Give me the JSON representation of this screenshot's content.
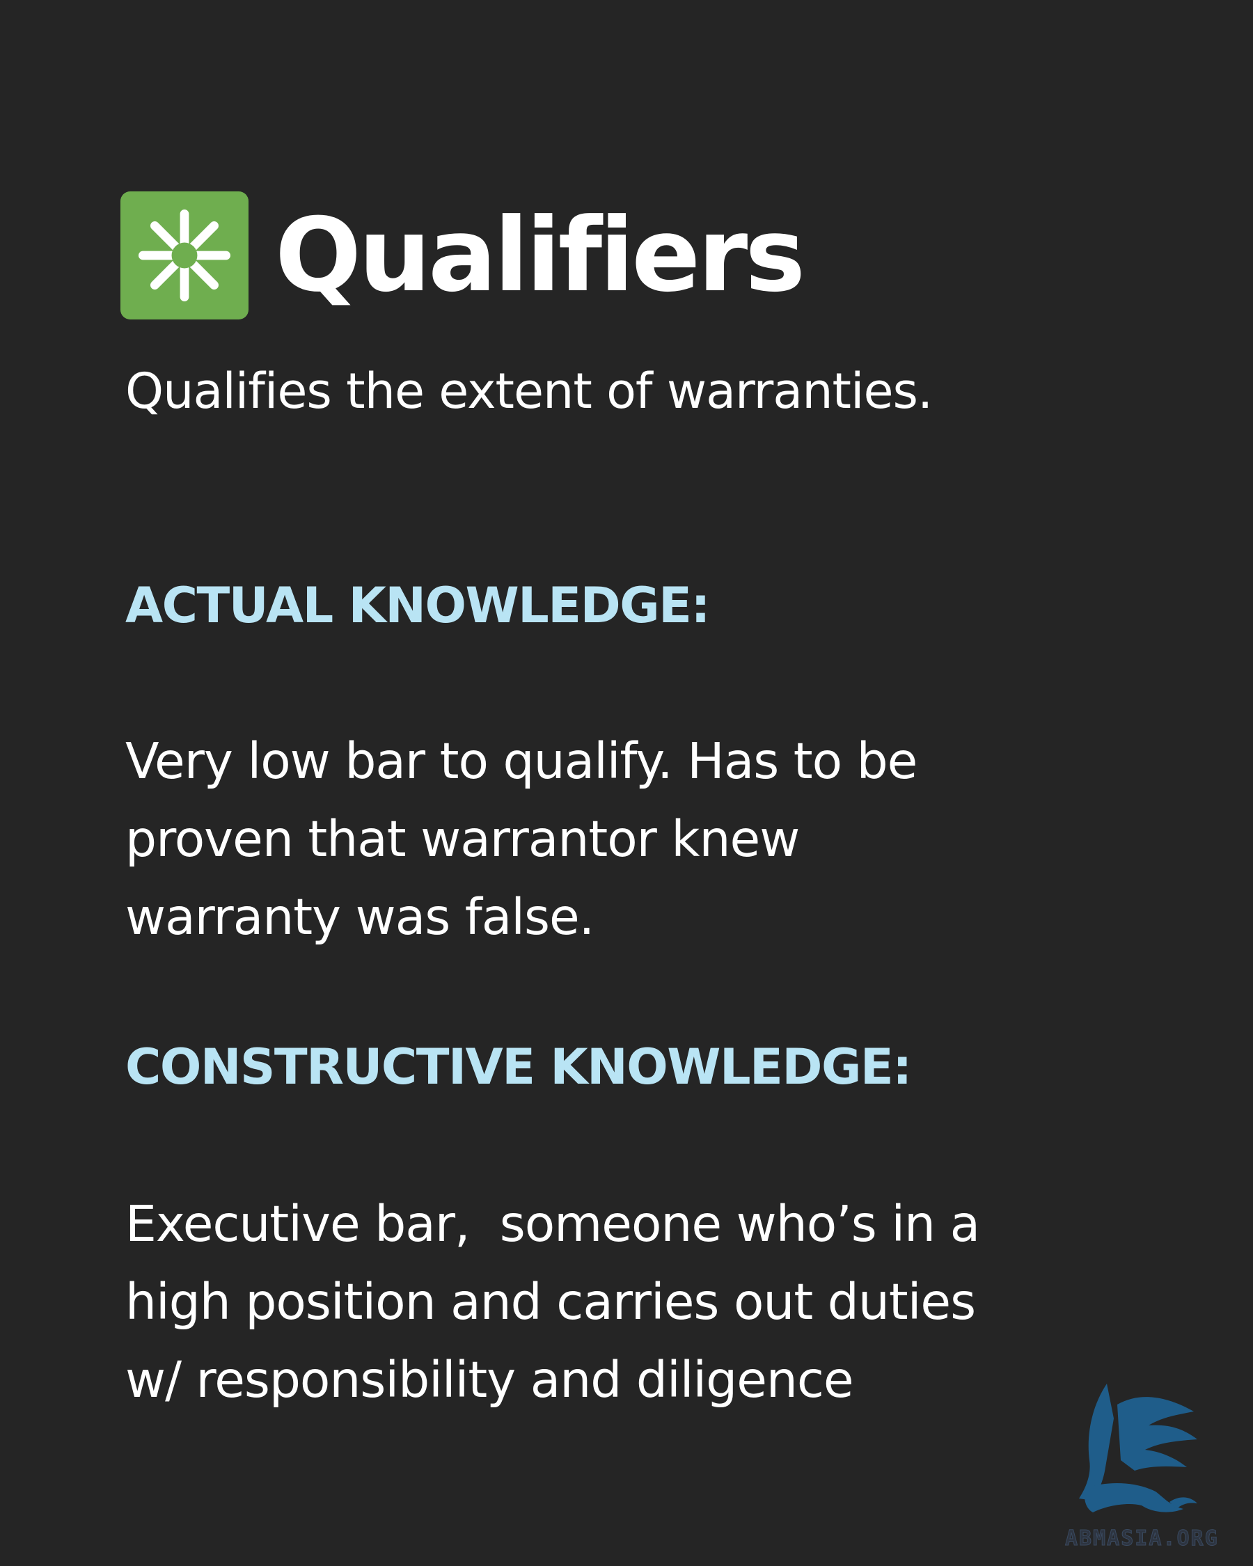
{
  "header": {
    "icon": "asterisk-icon",
    "icon_color": "#6fae4f",
    "title": "Qualifiers"
  },
  "subtitle": "Qualifies the extent of warranties.",
  "sections": [
    {
      "heading": "ACTUAL KNOWLEDGE:",
      "body_lines": [
        "Very low bar to qualify. Has to be",
        "proven that warrantor knew",
        "warranty was false."
      ]
    },
    {
      "heading": "CONSTRUCTIVE KNOWLEDGE:",
      "body_lines": [
        "Executive bar,  someone who’s in a",
        "high position and carries out duties",
        "w/ responsibility and diligence"
      ]
    }
  ],
  "watermark": {
    "icon": "griffin-logo",
    "text": "ABMASIA.ORG"
  },
  "colors": {
    "background": "#252525",
    "heading": "#b9e4f4",
    "text": "#ffffff",
    "logo": "#1f5d8a"
  }
}
